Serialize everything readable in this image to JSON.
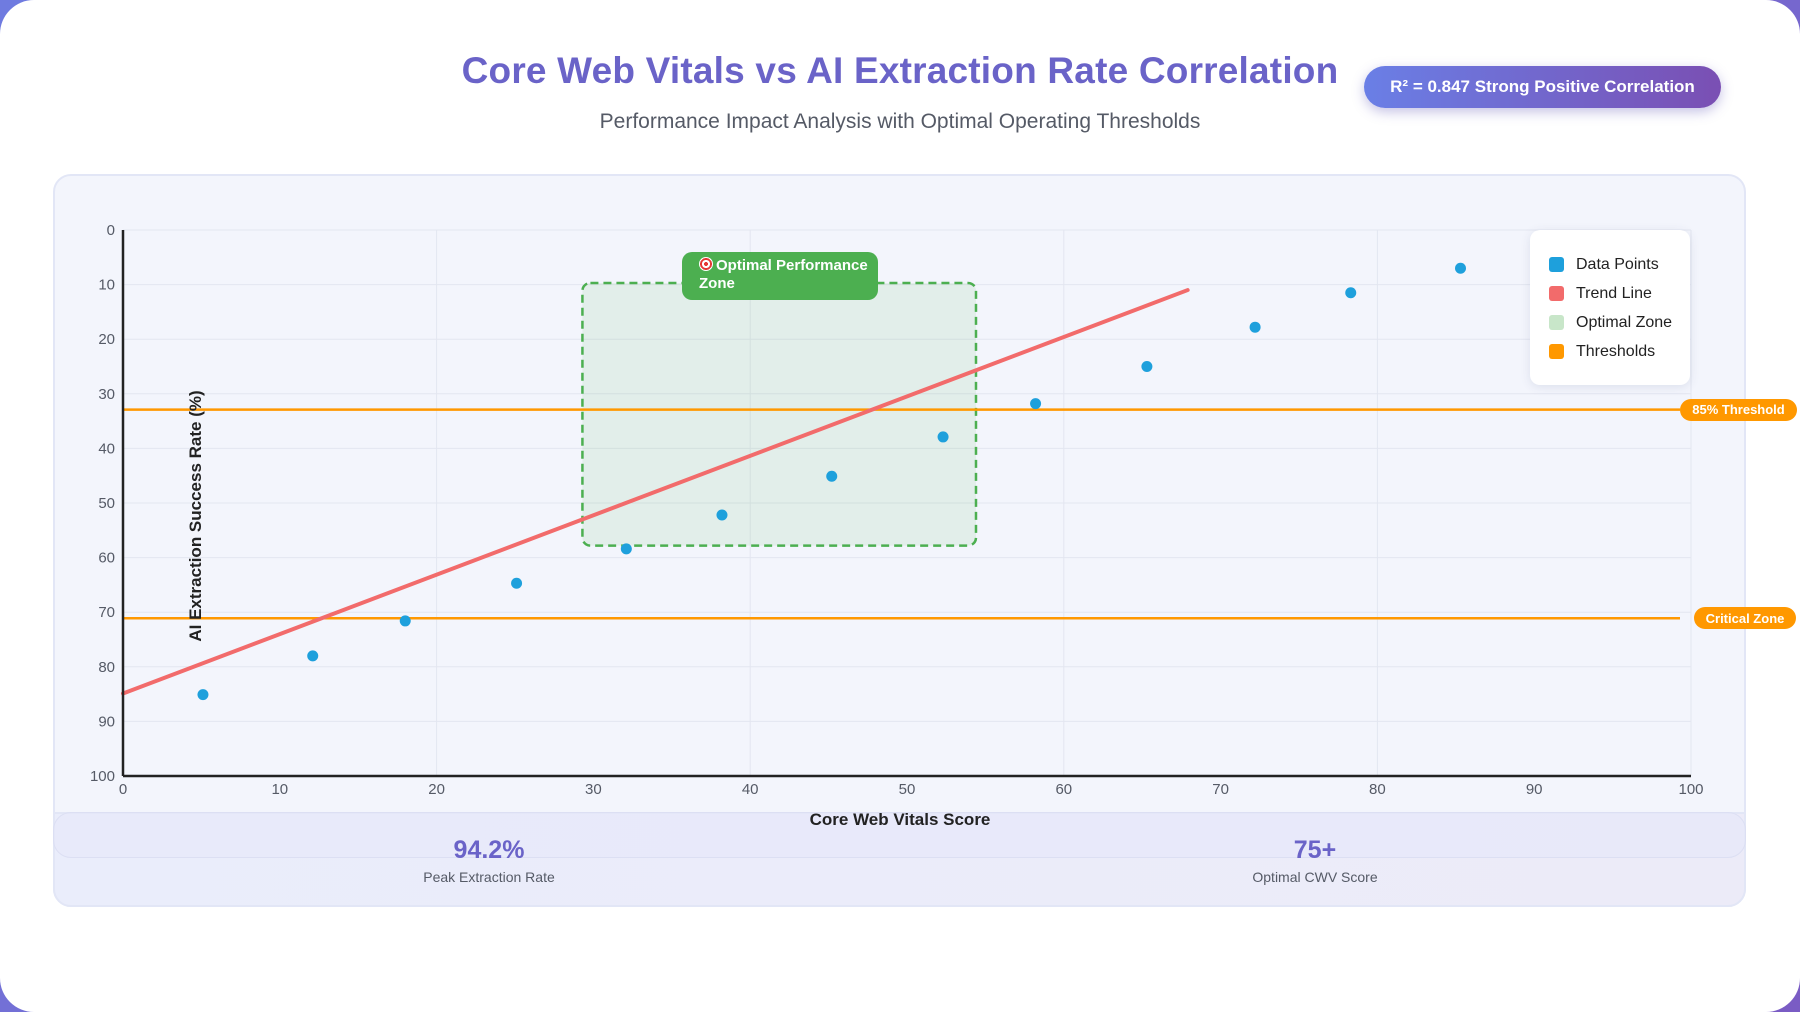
{
  "header": {
    "title": "Core Web Vitals vs AI Extraction Rate Correlation",
    "subtitle": "Performance Impact Analysis with Optimal Operating Thresholds",
    "badge": "R² = 0.847 Strong Positive Correlation"
  },
  "colors": {
    "accent": "#6a63c8",
    "points": "#1ea0dc",
    "trend": "#f26b6b",
    "zone": "#4caf50",
    "threshold": "#ff9800"
  },
  "chart_data": {
    "type": "scatter",
    "xlabel": "Core Web Vitals Score",
    "ylabel": "AI Extraction Success Rate (%)",
    "xlim": [
      0,
      100
    ],
    "ylim": [
      0,
      100
    ],
    "y_axis_inverted": true,
    "x_ticks": [
      "0",
      "10",
      "20",
      "30",
      "40",
      "50",
      "60",
      "70",
      "80",
      "90",
      "100"
    ],
    "y_ticks": [
      "0",
      "10",
      "20",
      "30",
      "40",
      "50",
      "60",
      "70",
      "80",
      "90",
      "100"
    ],
    "grid": true,
    "legend_position": "top-right",
    "series": [
      {
        "name": "Data Points",
        "x": [
          5.1,
          12.1,
          18.0,
          25.1,
          32.1,
          38.2,
          45.2,
          52.3,
          58.2,
          65.3,
          72.2,
          78.3,
          85.3
        ],
        "y": [
          85.1,
          78.0,
          71.6,
          64.7,
          58.4,
          52.2,
          45.1,
          37.9,
          31.8,
          25.0,
          17.8,
          11.5,
          7.0
        ]
      }
    ],
    "trend_line": {
      "name": "Trend Line",
      "x": [
        0,
        67.9
      ],
      "y": [
        84.9,
        11.0
      ]
    },
    "optimal_zone": {
      "name": "Optimal Zone",
      "label_icon": "target-icon",
      "label": "Optimal Performance Zone",
      "x": [
        29.3,
        54.4
      ],
      "y": [
        9.7,
        57.8
      ]
    },
    "thresholds": [
      {
        "name": "85% Threshold",
        "y": 32.9
      },
      {
        "name": "Critical Zone",
        "y": 71.1
      }
    ],
    "legend": [
      "Data Points",
      "Trend Line",
      "Optimal Zone",
      "Thresholds"
    ]
  },
  "stats": [
    {
      "value": "94.2%",
      "label": "Peak Extraction Rate"
    },
    {
      "value": "75+",
      "label": "Optimal CWV Score"
    }
  ]
}
